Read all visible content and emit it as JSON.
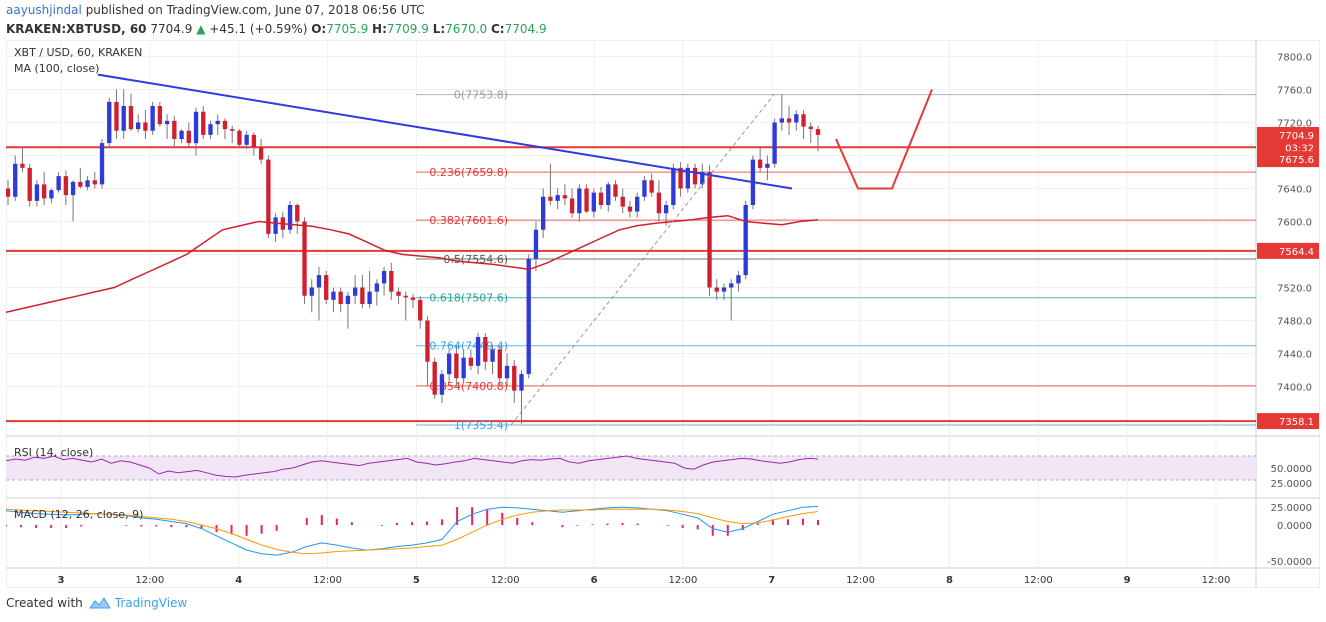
{
  "header": {
    "user": "aayushjindal",
    "published_text": "published on TradingView.com, June 07, 2018 06:56 UTC",
    "symbol": "KRAKEN:XBTUSD, 60",
    "price": "7704.9",
    "change_arrow": "▲",
    "change": "+45.1 (+0.59%)",
    "o_label": "O:",
    "o": "7705.9",
    "h_label": "H:",
    "h": "7709.9",
    "l_label": "L:",
    "l": "7670.0",
    "c_label": "C:",
    "c": "7704.9"
  },
  "footer": {
    "created_with": "Created with",
    "brand": "TradingView"
  },
  "chart_data": {
    "type": "candlestick",
    "title": "XBT / USD, 60, KRAKEN",
    "indicator_label": "MA (100, close)",
    "ylim": [
      7340,
      7820
    ],
    "y_ticks": [
      "7800.0",
      "7760.0",
      "7720.0",
      "7680.0",
      "7640.0",
      "7600.0",
      "7560.0",
      "7520.0",
      "7480.0",
      "7440.0",
      "7400.0"
    ],
    "x_ticks": [
      "3",
      "12:00",
      "4",
      "12:00",
      "5",
      "12:00",
      "6",
      "12:00",
      "7",
      "12:00",
      "8",
      "12:00",
      "9",
      "12:00"
    ],
    "price_tags": [
      {
        "label": "7704.9",
        "value": 7704.9,
        "color": "#e53935"
      },
      {
        "label": "03:32",
        "value": 7690,
        "color": "#e53935"
      },
      {
        "label": "7675.6",
        "value": 7675.6,
        "color": "#e53935"
      },
      {
        "label": "7564.4",
        "value": 7564.4,
        "color": "#e53935"
      },
      {
        "label": "7358.1",
        "value": 7358.1,
        "color": "#e53935"
      }
    ],
    "horizontal_levels": [
      7690,
      7564.4,
      7358.1
    ],
    "fib_levels": [
      {
        "label": "0(7753.8)",
        "value": 7753.8,
        "color": "#9e9e9e"
      },
      {
        "label": "0.236(7659.8)",
        "value": 7659.8,
        "color": "#e53935"
      },
      {
        "label": "0.382(7601.6)",
        "value": 7601.6,
        "color": "#e53935"
      },
      {
        "label": "0.5(7554.6)",
        "value": 7554.6,
        "color": "#555555"
      },
      {
        "label": "0.618(7507.6)",
        "value": 7507.6,
        "color": "#26a69a"
      },
      {
        "label": "0.764(7449.4)",
        "value": 7449.4,
        "color": "#3ea1e6"
      },
      {
        "label": "0.854(7400.8)",
        "value": 7400.8,
        "color": "#e53935"
      },
      {
        "label": "1(7353.4)",
        "value": 7353.4,
        "color": "#3ea1e6"
      }
    ],
    "candles": [
      [
        7640,
        7650,
        7620,
        7630
      ],
      [
        7630,
        7680,
        7625,
        7670
      ],
      [
        7670,
        7690,
        7660,
        7665
      ],
      [
        7665,
        7670,
        7618,
        7625
      ],
      [
        7625,
        7650,
        7618,
        7645
      ],
      [
        7645,
        7660,
        7620,
        7628
      ],
      [
        7628,
        7640,
        7622,
        7638
      ],
      [
        7638,
        7660,
        7635,
        7655
      ],
      [
        7655,
        7662,
        7620,
        7632
      ],
      [
        7632,
        7650,
        7600,
        7648
      ],
      [
        7648,
        7665,
        7640,
        7642
      ],
      [
        7642,
        7655,
        7638,
        7650
      ],
      [
        7650,
        7660,
        7640,
        7645
      ],
      [
        7645,
        7700,
        7640,
        7695
      ],
      [
        7695,
        7750,
        7690,
        7745
      ],
      [
        7745,
        7760,
        7700,
        7710
      ],
      [
        7710,
        7760,
        7700,
        7740
      ],
      [
        7740,
        7755,
        7710,
        7712
      ],
      [
        7712,
        7730,
        7708,
        7720
      ],
      [
        7720,
        7735,
        7700,
        7710
      ],
      [
        7710,
        7745,
        7705,
        7740
      ],
      [
        7740,
        7745,
        7715,
        7718
      ],
      [
        7718,
        7730,
        7700,
        7722
      ],
      [
        7722,
        7728,
        7690,
        7700
      ],
      [
        7700,
        7712,
        7695,
        7710
      ],
      [
        7710,
        7720,
        7690,
        7695
      ],
      [
        7695,
        7738,
        7680,
        7733
      ],
      [
        7733,
        7740,
        7700,
        7705
      ],
      [
        7705,
        7722,
        7700,
        7718
      ],
      [
        7718,
        7730,
        7705,
        7722
      ],
      [
        7722,
        7725,
        7700,
        7712
      ],
      [
        7712,
        7716,
        7695,
        7710
      ],
      [
        7710,
        7712,
        7690,
        7693
      ],
      [
        7693,
        7710,
        7688,
        7705
      ],
      [
        7705,
        7708,
        7680,
        7690
      ],
      [
        7690,
        7700,
        7670,
        7675
      ],
      [
        7675,
        7680,
        7580,
        7585
      ],
      [
        7585,
        7610,
        7575,
        7605
      ],
      [
        7605,
        7612,
        7580,
        7590
      ],
      [
        7590,
        7625,
        7585,
        7620
      ],
      [
        7620,
        7622,
        7585,
        7600
      ],
      [
        7600,
        7605,
        7500,
        7510
      ],
      [
        7510,
        7530,
        7490,
        7520
      ],
      [
        7520,
        7545,
        7480,
        7535
      ],
      [
        7535,
        7540,
        7500,
        7505
      ],
      [
        7505,
        7520,
        7490,
        7515
      ],
      [
        7515,
        7520,
        7490,
        7500
      ],
      [
        7500,
        7515,
        7470,
        7510
      ],
      [
        7510,
        7535,
        7500,
        7520
      ],
      [
        7520,
        7535,
        7495,
        7500
      ],
      [
        7500,
        7540,
        7495,
        7515
      ],
      [
        7515,
        7530,
        7498,
        7525
      ],
      [
        7525,
        7545,
        7510,
        7540
      ],
      [
        7540,
        7550,
        7505,
        7515
      ],
      [
        7515,
        7520,
        7500,
        7510
      ],
      [
        7510,
        7515,
        7480,
        7508
      ],
      [
        7508,
        7512,
        7495,
        7505
      ],
      [
        7505,
        7510,
        7470,
        7480
      ],
      [
        7480,
        7485,
        7400,
        7430
      ],
      [
        7430,
        7435,
        7385,
        7390
      ],
      [
        7390,
        7420,
        7380,
        7415
      ],
      [
        7415,
        7445,
        7405,
        7440
      ],
      [
        7440,
        7450,
        7400,
        7410
      ],
      [
        7410,
        7445,
        7405,
        7435
      ],
      [
        7435,
        7445,
        7420,
        7425
      ],
      [
        7425,
        7465,
        7415,
        7460
      ],
      [
        7460,
        7465,
        7420,
        7430
      ],
      [
        7430,
        7450,
        7415,
        7445
      ],
      [
        7445,
        7450,
        7400,
        7410
      ],
      [
        7410,
        7440,
        7400,
        7425
      ],
      [
        7425,
        7432,
        7380,
        7395
      ],
      [
        7395,
        7420,
        7355,
        7415
      ],
      [
        7415,
        7560,
        7410,
        7555
      ],
      [
        7555,
        7600,
        7540,
        7590
      ],
      [
        7590,
        7640,
        7580,
        7630
      ],
      [
        7630,
        7670,
        7620,
        7625
      ],
      [
        7625,
        7640,
        7615,
        7632
      ],
      [
        7632,
        7645,
        7620,
        7628
      ],
      [
        7628,
        7640,
        7605,
        7610
      ],
      [
        7610,
        7645,
        7600,
        7640
      ],
      [
        7640,
        7645,
        7610,
        7612
      ],
      [
        7612,
        7640,
        7605,
        7635
      ],
      [
        7635,
        7642,
        7615,
        7620
      ],
      [
        7620,
        7648,
        7612,
        7645
      ],
      [
        7645,
        7650,
        7625,
        7630
      ],
      [
        7630,
        7640,
        7610,
        7618
      ],
      [
        7618,
        7625,
        7605,
        7612
      ],
      [
        7612,
        7635,
        7605,
        7630
      ],
      [
        7630,
        7655,
        7625,
        7650
      ],
      [
        7650,
        7658,
        7630,
        7635
      ],
      [
        7635,
        7650,
        7600,
        7610
      ],
      [
        7610,
        7625,
        7595,
        7620
      ],
      [
        7620,
        7670,
        7615,
        7665
      ],
      [
        7665,
        7672,
        7630,
        7640
      ],
      [
        7640,
        7670,
        7635,
        7665
      ],
      [
        7665,
        7670,
        7640,
        7645
      ],
      [
        7645,
        7670,
        7640,
        7660
      ],
      [
        7660,
        7668,
        7510,
        7520
      ],
      [
        7520,
        7530,
        7505,
        7515
      ],
      [
        7515,
        7525,
        7505,
        7520
      ],
      [
        7520,
        7530,
        7480,
        7525
      ],
      [
        7525,
        7540,
        7515,
        7535
      ],
      [
        7535,
        7625,
        7530,
        7620
      ],
      [
        7620,
        7680,
        7615,
        7675
      ],
      [
        7675,
        7690,
        7660,
        7665
      ],
      [
        7665,
        7680,
        7650,
        7670
      ],
      [
        7670,
        7725,
        7665,
        7720
      ],
      [
        7720,
        7753.8,
        7710,
        7725
      ],
      [
        7725,
        7740,
        7705,
        7720
      ],
      [
        7720,
        7735,
        7710,
        7730
      ],
      [
        7730,
        7735,
        7700,
        7715
      ],
      [
        7715,
        7720,
        7695,
        7712
      ],
      [
        7712,
        7716,
        7685,
        7705
      ]
    ],
    "ma100": [
      7490,
      7495,
      7500,
      7505,
      7510,
      7515,
      7520,
      7530,
      7540,
      7550,
      7560,
      7575,
      7590,
      7595,
      7600,
      7598,
      7596,
      7594,
      7590,
      7585,
      7575,
      7565,
      7560,
      7558,
      7556,
      7552,
      7550,
      7548,
      7545,
      7542,
      7550,
      7560,
      7570,
      7580,
      7590,
      7595,
      7598,
      7600,
      7602,
      7605,
      7607,
      7600,
      7598,
      7596,
      7600,
      7602
    ],
    "trendline": {
      "start": 7778,
      "end": 7640
    },
    "projection": [
      [
        0,
        7700
      ],
      [
        1,
        7640
      ],
      [
        2,
        7640
      ],
      [
        3,
        7760
      ]
    ],
    "rsi": {
      "label": "RSI (14, close)",
      "ticks": [
        "50.0000",
        "25.0000"
      ],
      "upper": 70,
      "lower": 30,
      "values": [
        62,
        65,
        63,
        68,
        66,
        70,
        64,
        66,
        63,
        60,
        65,
        58,
        62,
        60,
        55,
        50,
        40,
        45,
        42,
        44,
        46,
        42,
        38,
        36,
        35,
        38,
        40,
        42,
        44,
        48,
        50,
        55,
        60,
        62,
        60,
        58,
        56,
        54,
        58,
        60,
        62,
        64,
        66,
        60,
        58,
        55,
        57,
        60,
        62,
        66,
        64,
        62,
        60,
        58,
        62,
        64,
        63,
        65,
        66,
        60,
        58,
        62,
        64,
        66,
        68,
        70,
        66,
        64,
        62,
        60,
        58,
        50,
        48,
        55,
        60,
        62,
        64,
        66,
        65,
        62,
        60,
        58,
        60,
        64,
        66,
        65
      ]
    },
    "macd": {
      "label": "MACD (12, 26, close, 9)",
      "ticks": [
        "25.0000",
        "0.0000",
        "-50.0000"
      ],
      "ylim": [
        -60,
        35
      ],
      "macd_line": [
        20,
        18,
        16,
        15,
        14,
        15,
        16,
        15,
        13,
        10,
        8,
        5,
        2,
        -5,
        -15,
        -25,
        -35,
        -40,
        -42,
        -38,
        -30,
        -25,
        -28,
        -32,
        -35,
        -33,
        -30,
        -28,
        -25,
        -20,
        5,
        15,
        22,
        25,
        24,
        22,
        20,
        18,
        20,
        22,
        24,
        25,
        24,
        22,
        20,
        15,
        10,
        -5,
        -10,
        -5,
        5,
        15,
        20,
        25,
        26
      ],
      "signal_line": [
        22,
        21,
        20,
        19,
        18,
        17,
        16,
        15,
        14,
        12,
        10,
        8,
        5,
        0,
        -5,
        -12,
        -20,
        -28,
        -34,
        -38,
        -40,
        -39,
        -37,
        -36,
        -35,
        -34,
        -33,
        -32,
        -30,
        -28,
        -20,
        -10,
        0,
        8,
        14,
        18,
        20,
        21,
        21,
        21,
        22,
        22,
        22,
        22,
        21,
        19,
        16,
        10,
        5,
        2,
        3,
        7,
        12,
        16,
        19
      ],
      "hist": [
        -2,
        -3,
        -4,
        -4,
        -4,
        -2,
        0,
        0,
        -1,
        -2,
        -2,
        -3,
        -3,
        -5,
        -10,
        -13,
        -15,
        -12,
        -8,
        0,
        10,
        14,
        9,
        4,
        0,
        -1,
        3,
        4,
        5,
        8,
        25,
        25,
        22,
        17,
        10,
        4,
        0,
        -3,
        -1,
        1,
        2,
        3,
        2,
        0,
        -1,
        -4,
        -6,
        -15,
        -15,
        -7,
        2,
        8,
        8,
        9,
        7
      ]
    }
  }
}
